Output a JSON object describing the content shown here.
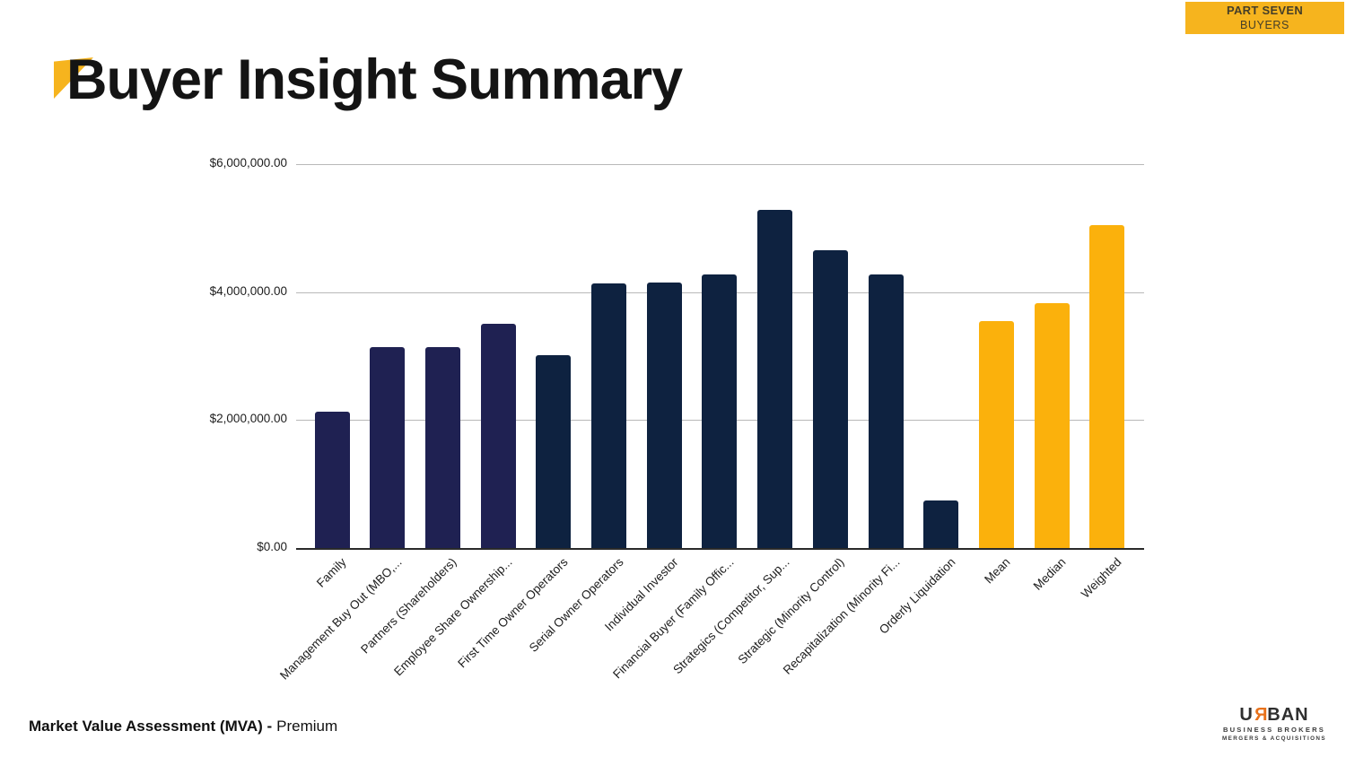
{
  "badge": {
    "part": "PART SEVEN",
    "section": "BUYERS"
  },
  "page_title": "Buyer Insight Summary",
  "footer": {
    "label_bold": "Market Value Assessment (MVA) -",
    "label_regular": "Premium"
  },
  "logo": {
    "name_start": "U",
    "name_reversed_letter": "R",
    "name_end": "BAN",
    "subtitle": "BUSINESS BROKERS",
    "tagline": "MERGERS & ACQUISITIONS"
  },
  "colors": {
    "accent_yellow": "#F6B41E",
    "bar_navy_light": "#1F2152",
    "bar_navy_dark": "#0E2240",
    "bar_yellow": "#FBB10C",
    "logo_orange": "#E8721C",
    "gridline": "#b9b9b9",
    "baseline": "#2a2a2a"
  },
  "chart_data": {
    "type": "bar",
    "title": "Buyer Insight Summary",
    "xlabel": "",
    "ylabel": "",
    "ylim": [
      0,
      6000000
    ],
    "grid": true,
    "legend": "none",
    "y_ticks": [
      {
        "value": 0,
        "label": "$0.00"
      },
      {
        "value": 2000000,
        "label": "$2,000,000.00"
      },
      {
        "value": 4000000,
        "label": "$4,000,000.00"
      },
      {
        "value": 6000000,
        "label": "$6,000,000.00"
      }
    ],
    "categories": [
      "Family",
      "Management Buy Out (MBO,...",
      "Partners (Shareholders)",
      "Employee Share Ownership...",
      "First Time Owner Operators",
      "Serial Owner Operators",
      "Individual Investor",
      "Financial Buyer (Family Offic...",
      "Strategics (Competitor, Sup...",
      "Strategic (Minority Control)",
      "Recapitalization (Minority Fi...",
      "Orderly Liquidation",
      "Mean",
      "Median",
      "Weighted"
    ],
    "values": [
      2130000,
      3140000,
      3140000,
      3510000,
      3020000,
      4140000,
      4150000,
      4270000,
      5290000,
      4650000,
      4280000,
      740000,
      3540000,
      3830000,
      5040000
    ],
    "bar_colors": [
      "#1F2152",
      "#1F2152",
      "#1F2152",
      "#1F2152",
      "#0E2240",
      "#0E2240",
      "#0E2240",
      "#0E2240",
      "#0E2240",
      "#0E2240",
      "#0E2240",
      "#0E2240",
      "#FBB10C",
      "#FBB10C",
      "#FBB10C"
    ]
  }
}
